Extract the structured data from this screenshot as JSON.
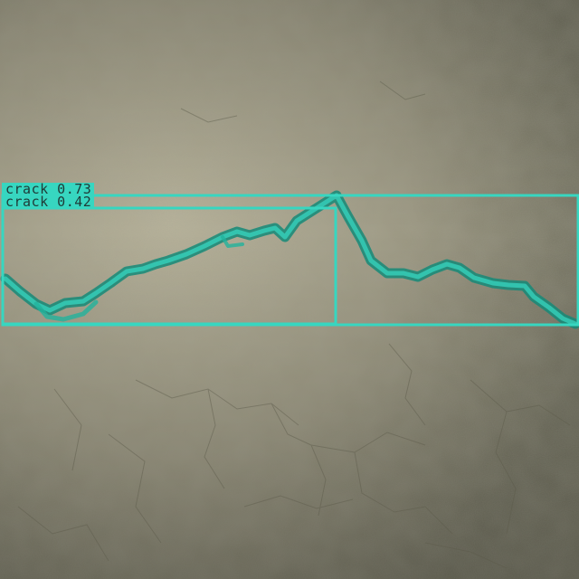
{
  "detections": [
    {
      "label": "crack 0.73"
    },
    {
      "label": "crack 0.42"
    }
  ],
  "colors": {
    "annotation": "#37d6c0",
    "mask_fill": "#22b39c",
    "label_text": "#1f3a37",
    "surface_light": "#b3ae95",
    "surface_dark": "#6b6a59"
  }
}
